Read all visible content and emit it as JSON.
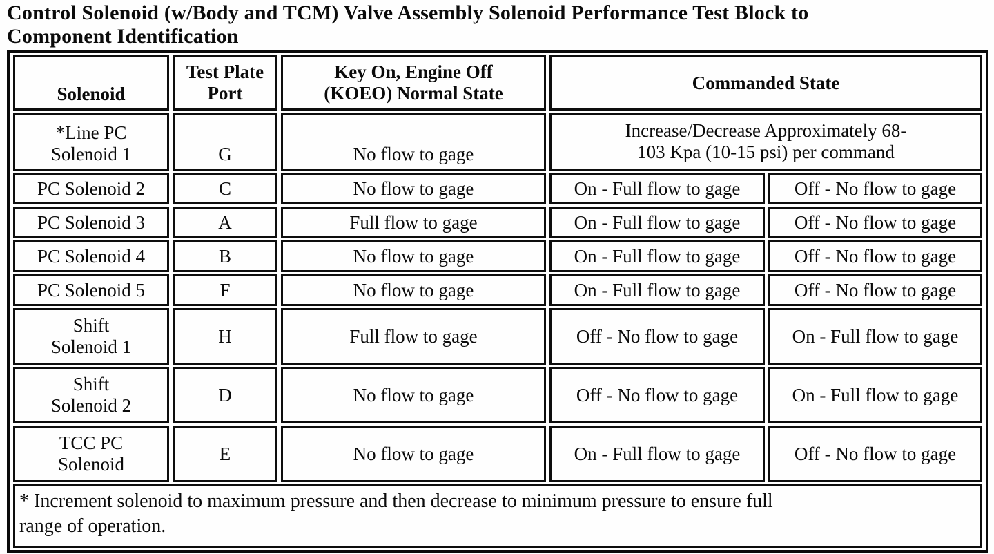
{
  "title": {
    "line1": "Control Solenoid (w/Body and TCM) Valve Assembly Solenoid Performance Test Block to",
    "line2": "Component Identification"
  },
  "table": {
    "headers": {
      "solenoid": "Solenoid",
      "test_plate_port": "Test Plate\nPort",
      "koeo_normal_state": "Key On, Engine Off\n(KOEO) Normal State",
      "commanded_state": "Commanded State"
    },
    "rows": [
      {
        "solenoid": "*Line PC\nSolenoid 1",
        "port": "G",
        "koeo": "No flow to gage",
        "commanded_full": "Increase/Decrease Approximately 68-\n103 Kpa (10-15 psi) per command"
      },
      {
        "solenoid": "PC Solenoid 2",
        "port": "C",
        "koeo": "No flow to gage",
        "commanded_left": "On - Full flow to gage",
        "commanded_right": "Off - No flow to gage"
      },
      {
        "solenoid": "PC Solenoid 3",
        "port": "A",
        "koeo": "Full flow to gage",
        "commanded_left": "On - Full flow to gage",
        "commanded_right": "Off - No flow to gage"
      },
      {
        "solenoid": "PC Solenoid 4",
        "port": "B",
        "koeo": "No flow to gage",
        "commanded_left": "On - Full flow to gage",
        "commanded_right": "Off - No flow to gage"
      },
      {
        "solenoid": "PC Solenoid 5",
        "port": "F",
        "koeo": "No flow to gage",
        "commanded_left": "On - Full flow to gage",
        "commanded_right": "Off - No flow to gage"
      },
      {
        "solenoid": "Shift\nSolenoid 1",
        "port": "H",
        "koeo": "Full flow to gage",
        "commanded_left": "Off - No flow to gage",
        "commanded_right": "On - Full flow to gage"
      },
      {
        "solenoid": "Shift\nSolenoid 2",
        "port": "D",
        "koeo": "No flow to gage",
        "commanded_left": "Off - No flow to gage",
        "commanded_right": "On - Full flow to gage"
      },
      {
        "solenoid": "TCC PC\nSolenoid",
        "port": "E",
        "koeo": "No flow to gage",
        "commanded_left": "On - Full flow to gage",
        "commanded_right": "Off - No flow to gage"
      }
    ],
    "footnote": "* Increment solenoid to maximum pressure and then decrease to minimum pressure to ensure full\nrange of operation."
  }
}
